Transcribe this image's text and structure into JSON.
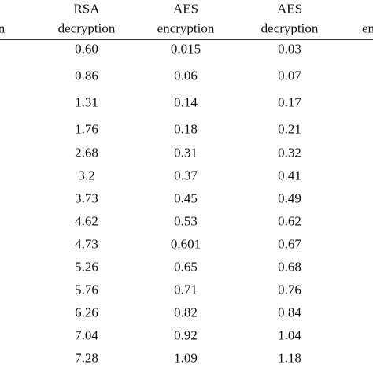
{
  "table": {
    "headers": [
      [
        "n"
      ],
      [
        "RSA",
        "decryption"
      ],
      [
        "AES",
        "encryption"
      ],
      [
        "AES",
        "decryption"
      ],
      [
        "en"
      ]
    ],
    "rows": [
      [
        "0.60",
        "0.015",
        "0.03"
      ],
      [
        "0.86",
        "0.06",
        "0.07"
      ],
      [
        "1.31",
        "0.14",
        "0.17"
      ],
      [
        "1.76",
        "0.18",
        "0.21"
      ],
      [
        "2.68",
        "0.31",
        "0.32"
      ],
      [
        "3.2",
        "0.37",
        "0.41"
      ],
      [
        "3.73",
        "0.45",
        "0.49"
      ],
      [
        "4.62",
        "0.53",
        "0.62"
      ],
      [
        "4.73",
        "0.601",
        "0.67"
      ],
      [
        "5.26",
        "0.65",
        "0.68"
      ],
      [
        "5.76",
        "0.71",
        "0.76"
      ],
      [
        "6.26",
        "0.82",
        "0.84"
      ],
      [
        "7.04",
        "0.92",
        "1.04"
      ],
      [
        "7.28",
        "1.09",
        "1.18"
      ]
    ]
  }
}
